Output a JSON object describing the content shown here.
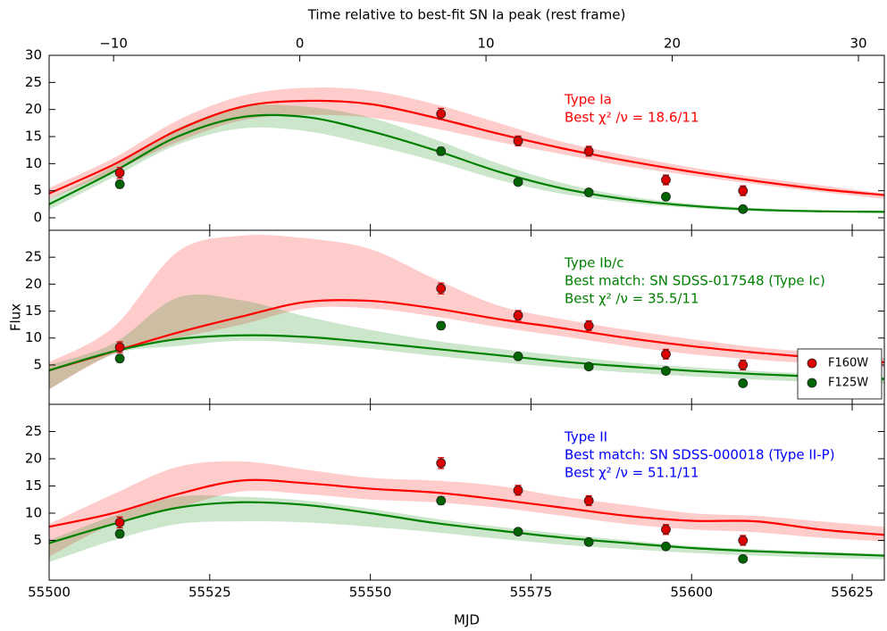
{
  "chart_data": [
    {
      "type": "line",
      "x2label": "Time relative to best-fit SN Ia peak (rest frame)",
      "x2lim": [
        -13.46,
        31.39
      ],
      "x2ticks": [
        {
          "value": -10,
          "label": "−10"
        },
        0,
        10,
        20,
        30
      ],
      "xlim": [
        55500,
        55630
      ],
      "ylim": [
        -2.3,
        30
      ],
      "yticks": [
        0,
        5,
        10,
        15,
        20,
        25,
        30
      ],
      "annotations": [
        "Type Ia",
        "Best χ² /ν = 18.6/11"
      ],
      "annotation_color": "#ff0000",
      "x": [
        55500,
        55510,
        55520,
        55530,
        55540,
        55550,
        55560,
        55570,
        55580,
        55590,
        55600,
        55610,
        55620,
        55630
      ],
      "series": [
        {
          "color": "#ff0000",
          "values": [
            4.5,
            9.8,
            16.2,
            20.5,
            21.6,
            21,
            18.5,
            15.5,
            12.8,
            10.5,
            8.5,
            6.8,
            5.3,
            4.2
          ],
          "lower": [
            3.5,
            8.5,
            14,
            18,
            19,
            18.5,
            16.5,
            14,
            11.7,
            9.5,
            7.8,
            6.2,
            4.8,
            3.5
          ],
          "upper": [
            5.5,
            11,
            18,
            22.5,
            24,
            23.5,
            21,
            17.5,
            14,
            11.5,
            9.3,
            7.5,
            6,
            4.5
          ]
        },
        {
          "color": "#008000",
          "values": [
            2.5,
            8.5,
            15,
            18.6,
            18.6,
            16,
            12.5,
            8.5,
            5.4,
            3.4,
            2.2,
            1.5,
            1.2,
            1.1
          ],
          "lower": [
            1.5,
            7.5,
            13.5,
            16.5,
            16,
            13.5,
            10.5,
            7,
            4.4,
            2.8,
            1.8,
            1.2,
            1,
            0.9
          ],
          "upper": [
            3.5,
            9.5,
            16.5,
            20.5,
            20.5,
            18.5,
            14.5,
            10,
            6.4,
            4,
            2.6,
            1.8,
            1.4,
            1.3
          ]
        }
      ],
      "points": {
        "x": [
          55511,
          55561,
          55573,
          55584,
          55596,
          55608
        ],
        "series": [
          {
            "color": "#dd0000",
            "values": [
              8.3,
              19.2,
              14.2,
              12.3,
              7.0,
              5.0
            ],
            "errors": [
              1,
              1,
              0.9,
              0.9,
              0.9,
              0.9
            ]
          },
          {
            "color": "#006400",
            "values": [
              6.2,
              12.3,
              6.6,
              4.7,
              3.9,
              1.6
            ],
            "errors": [
              0.7,
              0.7,
              0.5,
              0.5,
              0.5,
              0.5
            ]
          }
        ]
      }
    },
    {
      "type": "line",
      "ylabel": "Flux",
      "legend": "lower right",
      "xlim": [
        55500,
        55630
      ],
      "ylim": [
        -2.3,
        30
      ],
      "yticks": [
        5,
        10,
        15,
        20,
        25
      ],
      "annotations": [
        "Type Ib/c",
        "Best match: SN SDSS-017548 (Type Ic)",
        "Best χ² /ν = 35.5/11"
      ],
      "annotation_color": "#008000",
      "x": [
        55500,
        55510,
        55520,
        55530,
        55540,
        55550,
        55560,
        55570,
        55580,
        55590,
        55600,
        55610,
        55620,
        55630
      ],
      "series": [
        {
          "color": "#ff0000",
          "values": [
            4,
            7.5,
            11,
            14,
            16.7,
            16.9,
            15.5,
            13.5,
            11.8,
            10,
            8.5,
            7.3,
            6.3,
            5.5
          ],
          "lower": [
            0.5,
            7,
            10,
            12.5,
            15.5,
            15.5,
            14,
            12,
            10.3,
            8.5,
            7,
            6,
            5.2,
            4.5
          ],
          "upper": [
            5.5,
            12,
            26,
            29,
            28.5,
            26.5,
            21,
            16,
            13.5,
            11.5,
            9.8,
            8.3,
            7.3,
            6.3
          ]
        },
        {
          "color": "#008000",
          "values": [
            4,
            7.5,
            9.8,
            10.5,
            10.2,
            9.2,
            8,
            6.8,
            5.6,
            4.7,
            3.9,
            3.3,
            2.8,
            2.4
          ],
          "lower": [
            0.5,
            7,
            8.5,
            9.5,
            9,
            8,
            6.7,
            5.5,
            4.5,
            3.6,
            2.9,
            2.3,
            1.8,
            1.5
          ],
          "upper": [
            5,
            9,
            17.5,
            17,
            14,
            11.5,
            9.5,
            8,
            6.7,
            5.5,
            4.6,
            3.9,
            3.3,
            2.8
          ]
        }
      ],
      "points": {
        "x": [
          55511,
          55561,
          55573,
          55584,
          55596,
          55608
        ],
        "series": [
          {
            "name": "F160W",
            "color": "#dd0000",
            "values": [
              8.3,
              19.2,
              14.2,
              12.3,
              7.0,
              5.0
            ],
            "errors": [
              1,
              1,
              0.9,
              0.9,
              0.9,
              0.9
            ]
          },
          {
            "name": "F125W",
            "color": "#006400",
            "values": [
              6.2,
              12.3,
              6.6,
              4.7,
              3.9,
              1.6
            ],
            "errors": [
              0.7,
              0.7,
              0.5,
              0.5,
              0.5,
              0.5
            ]
          }
        ]
      }
    },
    {
      "type": "line",
      "xlabel": "MJD",
      "xticks": [
        55500,
        55525,
        55550,
        55575,
        55600,
        55625
      ],
      "xlim": [
        55500,
        55630
      ],
      "ylim": [
        -2.3,
        30
      ],
      "yticks": [
        5,
        10,
        15,
        20,
        25
      ],
      "annotations": [
        "Type II",
        "Best match: SN SDSS-000018 (Type II-P)",
        "Best χ² /ν = 51.1/11"
      ],
      "annotation_color": "#0000ff",
      "x": [
        55500,
        55510,
        55520,
        55530,
        55540,
        55550,
        55560,
        55570,
        55580,
        55590,
        55600,
        55610,
        55620,
        55630
      ],
      "series": [
        {
          "color": "#ff0000",
          "values": [
            7.5,
            10,
            13.5,
            16,
            15.5,
            14.5,
            13.8,
            12.5,
            11,
            9.5,
            8.6,
            8.5,
            7,
            6
          ],
          "lower": [
            2,
            8,
            11,
            14,
            13.5,
            12.5,
            12,
            11,
            9.5,
            8,
            7,
            6.5,
            5.5,
            4.8
          ],
          "upper": [
            8,
            13.5,
            18.5,
            19.5,
            18,
            16.5,
            16,
            15,
            13,
            11.5,
            10,
            9.5,
            8.5,
            7.5
          ]
        },
        {
          "color": "#008000",
          "values": [
            4.5,
            8,
            11,
            12,
            11.5,
            10,
            8.2,
            6.8,
            5.5,
            4.5,
            3.6,
            3,
            2.6,
            2.2
          ],
          "lower": [
            1,
            5,
            8,
            8.5,
            8.3,
            7.5,
            6.5,
            5.3,
            4.2,
            3.4,
            2.7,
            2.2,
            1.8,
            1.5
          ],
          "upper": [
            5,
            9.5,
            13,
            13,
            12.3,
            10.8,
            9,
            7.5,
            6.2,
            5,
            4,
            3.4,
            2.9,
            2.5
          ]
        }
      ],
      "points": {
        "x": [
          55511,
          55561,
          55573,
          55584,
          55596,
          55608
        ],
        "series": [
          {
            "color": "#dd0000",
            "values": [
              8.3,
              19.2,
              14.2,
              12.3,
              7.0,
              5.0
            ],
            "errors": [
              1,
              1,
              0.9,
              0.9,
              0.9,
              0.9
            ]
          },
          {
            "color": "#006400",
            "values": [
              6.2,
              12.3,
              6.6,
              4.7,
              3.9,
              1.6
            ],
            "errors": [
              0.7,
              0.7,
              0.5,
              0.5,
              0.5,
              0.5
            ]
          }
        ]
      }
    }
  ]
}
